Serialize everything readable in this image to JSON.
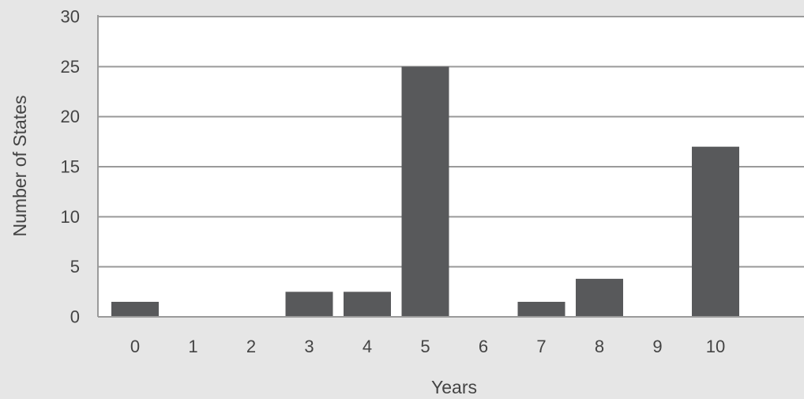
{
  "chart_data": {
    "type": "bar",
    "categories": [
      "0",
      "1",
      "2",
      "3",
      "4",
      "5",
      "6",
      "7",
      "8",
      "9",
      "10"
    ],
    "values": [
      1.5,
      0,
      0,
      2.5,
      2.5,
      25,
      0,
      1.5,
      3.8,
      0,
      17
    ],
    "title": "",
    "xlabel": "Years",
    "ylabel": "Number of States",
    "ylim": [
      0,
      30
    ],
    "yticks": [
      0,
      5,
      10,
      15,
      20,
      25,
      30
    ],
    "grid": true,
    "legend": "none",
    "colors": {
      "bar": "#58595b",
      "plot_background": "#ffffff",
      "page_background": "#e6e6e6",
      "gridline": "#9a9a9a",
      "text": "#444444"
    }
  }
}
